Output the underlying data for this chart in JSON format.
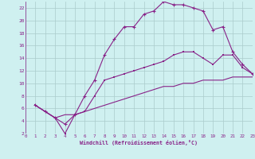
{
  "xlabel": "Windchill (Refroidissement éolien,°C)",
  "xlim": [
    0,
    23
  ],
  "ylim": [
    2,
    23
  ],
  "xticks": [
    0,
    1,
    2,
    3,
    4,
    5,
    6,
    7,
    8,
    9,
    10,
    11,
    12,
    13,
    14,
    15,
    16,
    17,
    18,
    19,
    20,
    21,
    22,
    23
  ],
  "yticks": [
    2,
    4,
    6,
    8,
    10,
    12,
    14,
    16,
    18,
    20,
    22
  ],
  "bg_color": "#cff0f0",
  "grid_color": "#aacccc",
  "line_color": "#882288",
  "line1_x": [
    1,
    2,
    3,
    4,
    5,
    6,
    7,
    8,
    9,
    10,
    11,
    12,
    13,
    14,
    15,
    16,
    17,
    18,
    19,
    20,
    21,
    22,
    23
  ],
  "line1_y": [
    6.5,
    5.5,
    4.5,
    3.5,
    5.0,
    8.0,
    10.5,
    14.5,
    17.0,
    19.0,
    19.0,
    21.0,
    21.5,
    23.0,
    22.5,
    22.5,
    22.0,
    21.5,
    18.5,
    19.0,
    15.0,
    13.0,
    11.5
  ],
  "line2_x": [
    1,
    2,
    3,
    4,
    5,
    6,
    7,
    8,
    9,
    10,
    11,
    12,
    13,
    14,
    15,
    16,
    17,
    18,
    19,
    20,
    21,
    22,
    23
  ],
  "line2_y": [
    6.5,
    5.5,
    4.5,
    2.0,
    5.0,
    5.5,
    8.0,
    10.5,
    11.0,
    11.5,
    12.0,
    12.5,
    13.0,
    13.5,
    14.5,
    15.0,
    15.0,
    14.0,
    13.0,
    14.5,
    14.5,
    12.5,
    11.5
  ],
  "line3_x": [
    1,
    2,
    3,
    4,
    5,
    6,
    7,
    8,
    9,
    10,
    11,
    12,
    13,
    14,
    15,
    16,
    17,
    18,
    19,
    20,
    21,
    22,
    23
  ],
  "line3_y": [
    6.5,
    5.5,
    4.5,
    5.0,
    5.0,
    5.5,
    6.0,
    6.5,
    7.0,
    7.5,
    8.0,
    8.5,
    9.0,
    9.5,
    9.5,
    10.0,
    10.0,
    10.5,
    10.5,
    10.5,
    11.0,
    11.0,
    11.0
  ]
}
